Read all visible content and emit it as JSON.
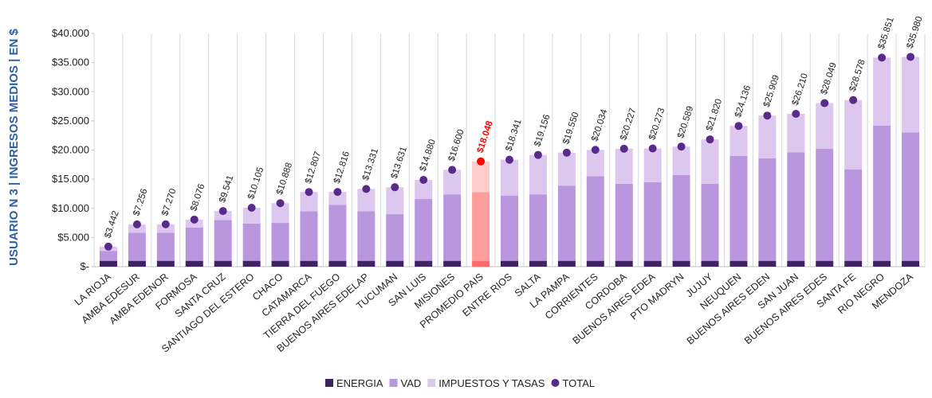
{
  "chart_data": {
    "type": "stacked_bar",
    "y_label": "USUARIO N 3 | INGRESOS MEDIOS | EN $",
    "categories": [
      "LA RIOJA",
      "AMBA EDESUR",
      "AMBA EDENOR",
      "FORMOSA",
      "SANTA CRUZ",
      "SANTIAGO DEL ESTERO",
      "CHACO",
      "CATAMARCA",
      "TIERRA DEL FUEGO",
      "BUENOS AIRES EDELAP",
      "TUCUMAN",
      "SAN LUIS",
      "MISIONES",
      "PROMEDIO PAIS",
      "ENTRE RIOS",
      "SALTA",
      "LA PAMPA",
      "CORRIENTES",
      "CORDOBA",
      "BUENOS AIRES EDEA",
      "PTO MADRYN",
      "JUJUY",
      "NEUQUEN",
      "BUENOS AIRES EDEN",
      "SAN JUAN",
      "BUENOS AIRES EDES",
      "SANTA FE",
      "RIO NEGRO",
      "MENDOZA"
    ],
    "highlight": "PROMEDIO PAIS",
    "series": [
      {
        "name": "ENERGIA",
        "color": "#3d2361",
        "highlight_color": "#ff6b6b",
        "values": [
          1000,
          1000,
          1000,
          1000,
          1000,
          1000,
          1000,
          1000,
          1000,
          1000,
          1000,
          1000,
          1000,
          1000,
          1000,
          1000,
          1000,
          1000,
          1000,
          1000,
          1000,
          1000,
          1000,
          1000,
          1000,
          1000,
          1000,
          1000,
          1000
        ]
      },
      {
        "name": "VAD",
        "color": "#b996dd",
        "highlight_color": "#ff9c9c",
        "values": [
          1700,
          4800,
          4800,
          5700,
          7000,
          6400,
          6500,
          8500,
          9600,
          8500,
          8000,
          10600,
          11400,
          11800,
          11200,
          11400,
          12900,
          14500,
          13200,
          13500,
          14700,
          13200,
          18000,
          17600,
          18600,
          19200,
          15700,
          23200,
          22000
        ]
      },
      {
        "name": "IMPUESTOS Y TASAS",
        "color": "#dcc8ef",
        "highlight_color": "#ffcccc",
        "values": [
          742,
          1456,
          1470,
          1376,
          1541,
          2705,
          3388,
          3307,
          2216,
          3831,
          4631,
          3280,
          4200,
          5248,
          6141,
          6756,
          5650,
          4534,
          6027,
          5773,
          4889,
          7620,
          5136,
          7309,
          6610,
          7849,
          11878,
          11651,
          12980
        ]
      },
      {
        "name": "TOTAL",
        "type": "dot",
        "color": "#5a2a8a",
        "highlight_color": "#ff0000",
        "values": [
          3442,
          7256,
          7270,
          8076,
          9541,
          10105,
          10888,
          12807,
          12816,
          13331,
          13631,
          14880,
          16600,
          18048,
          18341,
          19156,
          19550,
          20034,
          20227,
          20273,
          20589,
          21820,
          24136,
          25909,
          26210,
          28049,
          28578,
          35851,
          35980
        ],
        "value_labels": [
          "$3.442",
          "$7.256",
          "$7.270",
          "$8.076",
          "$9.541",
          "$10.105",
          "$10.888",
          "$12.807",
          "$12.816",
          "$13.331",
          "$13.631",
          "$14.880",
          "$16.600",
          "$18.048",
          "$18.341",
          "$19.156",
          "$19.550",
          "$20.034",
          "$20.227",
          "$20.273",
          "$20.589",
          "$21.820",
          "$24.136",
          "$25.909",
          "$26.210",
          "$28.049",
          "$28.578",
          "$35.851",
          "$35.980"
        ]
      }
    ],
    "ylim": [
      0,
      40000
    ],
    "yticks": [
      {
        "value": 0,
        "label": "$-"
      },
      {
        "value": 5000,
        "label": "$5.000"
      },
      {
        "value": 10000,
        "label": "$10.000"
      },
      {
        "value": 15000,
        "label": "$15.000"
      },
      {
        "value": 20000,
        "label": "$20.000"
      },
      {
        "value": 25000,
        "label": "$25.000"
      },
      {
        "value": 30000,
        "label": "$30.000"
      },
      {
        "value": 35000,
        "label": "$35.000"
      },
      {
        "value": 40000,
        "label": "$40.000"
      }
    ],
    "legend": "bottom"
  }
}
